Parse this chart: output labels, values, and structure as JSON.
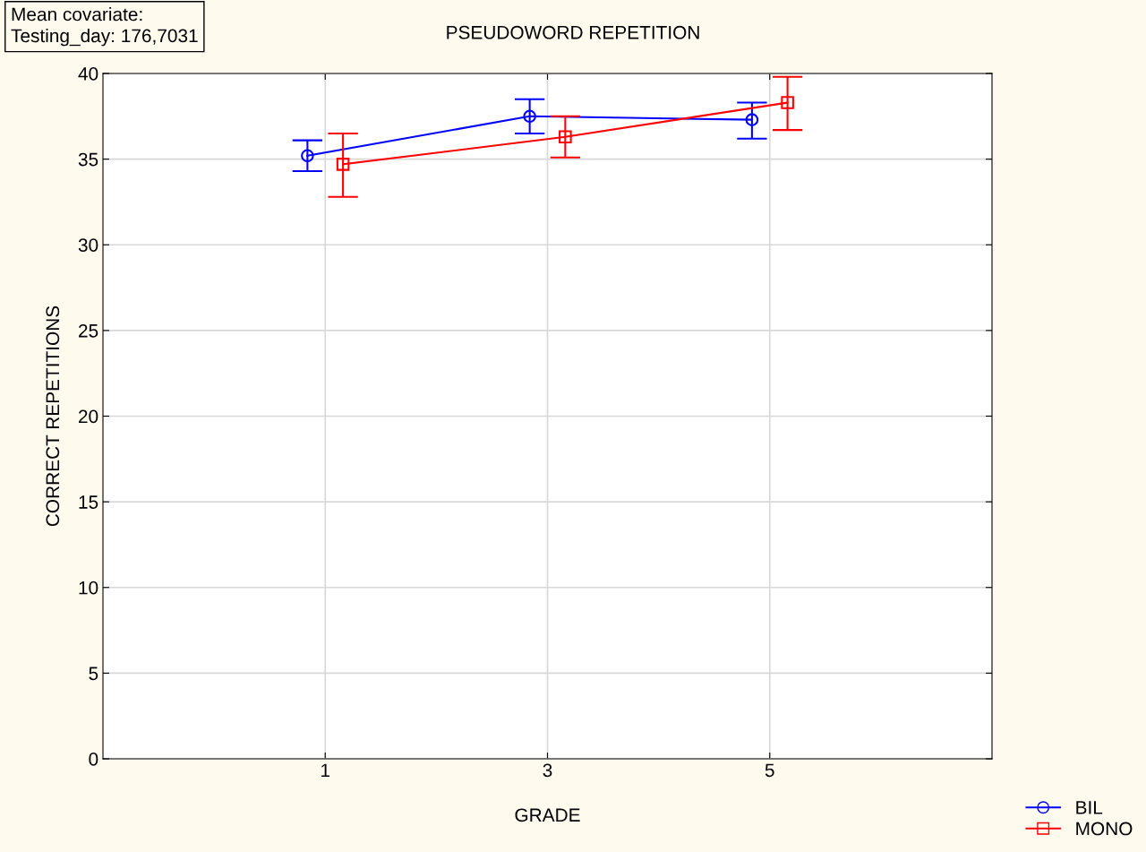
{
  "chart_data": {
    "type": "line",
    "title": "PSEUDOWORD REPETITION",
    "xlabel": "GRADE",
    "ylabel": "CORRECT REPETITIONS",
    "annotations": [
      "Mean covariate:\nTesting_day: 176,7031"
    ],
    "categories": [
      "1",
      "3",
      "5"
    ],
    "series": [
      {
        "name": "BIL",
        "color": "#0000ff",
        "marker": "circle",
        "values": [
          35.2,
          37.5,
          37.3
        ],
        "errors": [
          [
            34.3,
            36.1
          ],
          [
            36.5,
            38.5
          ],
          [
            36.2,
            38.3
          ]
        ]
      },
      {
        "name": "MONO",
        "color": "#ff0000",
        "marker": "square",
        "values": [
          34.7,
          36.3,
          38.3
        ],
        "errors": [
          [
            32.8,
            36.5
          ],
          [
            35.1,
            37.5
          ],
          [
            36.7,
            39.8
          ]
        ]
      }
    ],
    "ylim": [
      0,
      40
    ],
    "yticks": [
      0,
      5,
      10,
      15,
      20,
      25,
      30,
      35,
      40
    ],
    "grid": true,
    "legend": "bottom right",
    "line_style": "solid"
  }
}
